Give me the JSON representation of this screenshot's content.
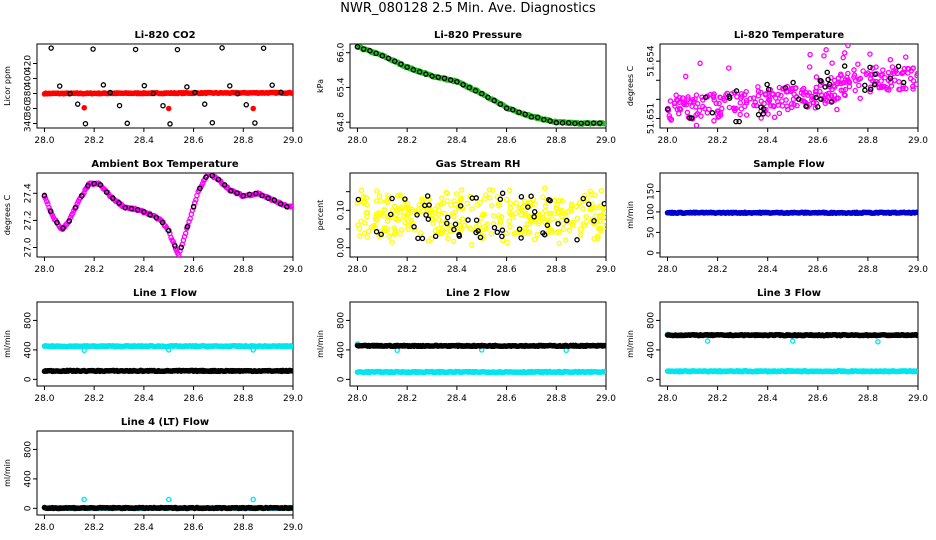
{
  "page_title": "NWR_080128  2.5 Min. Ave. Diagnostics",
  "colors": {
    "co2": "#ff0000",
    "pressure": "#22bb22",
    "temperature": "#ff00ff",
    "ambient": "#ff00ff",
    "rh": "#ffff00",
    "sample_flow": "#0000cc",
    "line_flow": "#00e5ee",
    "reference": "#000000"
  },
  "chart_data": [
    {
      "id": "co2",
      "type": "scatter",
      "title": "Li-820 CO2",
      "ylabel": "Licor ppm",
      "x_ticks": [
        "28.0",
        "28.2",
        "28.4",
        "28.6",
        "28.8",
        "29.0"
      ],
      "xlim": [
        27.97,
        29.0
      ],
      "y_ticks": [
        "340",
        "360",
        "380",
        "400",
        "420"
      ],
      "ylim": [
        334,
        446
      ],
      "series": [
        {
          "name": "averages",
          "color": "#ff0000",
          "filled": true,
          "start": 380.0,
          "end": 381.0
        },
        {
          "name": "reference",
          "color": "#000000",
          "levels": [
            440,
            390,
            380,
            365,
            340
          ]
        },
        {
          "name": "outliers",
          "color": "#ff0000",
          "points": [
            [
              28.16,
              361
            ],
            [
              28.5,
              360
            ],
            [
              28.84,
              360
            ]
          ]
        }
      ]
    },
    {
      "id": "pressure",
      "type": "scatter",
      "title": "Li-820 Pressure",
      "ylabel": "kPa",
      "x_ticks": [
        "28.0",
        "28.2",
        "28.4",
        "28.6",
        "28.8",
        "29.0"
      ],
      "xlim": [
        27.97,
        29.0
      ],
      "y_ticks": [
        "64.8",
        "65.4",
        "66.0"
      ],
      "y_tick_values": [
        64.8,
        65.4,
        66.0
      ],
      "ylim": [
        64.7,
        66.15
      ],
      "series": [
        {
          "name": "averages",
          "color": "#22bb22",
          "curve": [
            [
              28.0,
              66.1
            ],
            [
              28.1,
              65.95
            ],
            [
              28.2,
              65.75
            ],
            [
              28.3,
              65.6
            ],
            [
              28.4,
              65.5
            ],
            [
              28.5,
              65.3
            ],
            [
              28.6,
              65.05
            ],
            [
              28.7,
              64.9
            ],
            [
              28.8,
              64.8
            ],
            [
              28.9,
              64.78
            ],
            [
              29.0,
              64.78
            ]
          ]
        }
      ]
    },
    {
      "id": "temperature",
      "type": "scatter",
      "title": "Li-820 Temperature",
      "ylabel": "degrees C",
      "x_ticks": [
        "28.0",
        "28.2",
        "28.4",
        "28.6",
        "28.8",
        "29.0"
      ],
      "xlim": [
        27.97,
        29.0
      ],
      "y_ticks": [
        "51.651",
        "51.652",
        "51.653",
        "51.654"
      ],
      "y_tick_labels": [
        "51.651",
        "",
        "",
        "51.654"
      ],
      "y_tick_values": [
        51.651,
        51.652,
        51.653,
        51.654
      ],
      "ylim": [
        51.6505,
        51.6549
      ],
      "series": [
        {
          "name": "averages",
          "color": "#ff00ff",
          "band": [
            [
              28.0,
              51.6515
            ],
            [
              28.55,
              51.652
            ],
            [
              28.65,
              51.6525
            ],
            [
              28.75,
              51.653
            ],
            [
              29.0,
              51.6532
            ]
          ]
        }
      ]
    },
    {
      "id": "ambient",
      "type": "scatter",
      "title": "Ambient Box Temperature",
      "ylabel": "degrees C",
      "x_ticks": [
        "28.0",
        "28.2",
        "28.4",
        "28.6",
        "28.8",
        "29.0"
      ],
      "xlim": [
        27.97,
        29.0
      ],
      "y_ticks": [
        "27.0",
        "27.2",
        "27.4"
      ],
      "y_tick_values": [
        27.0,
        27.2,
        27.4
      ],
      "ylim": [
        26.93,
        27.55
      ],
      "series": [
        {
          "name": "averages",
          "color": "#ff00ff",
          "curve": [
            [
              28.0,
              27.38
            ],
            [
              28.03,
              27.24
            ],
            [
              28.07,
              27.13
            ],
            [
              28.1,
              27.2
            ],
            [
              28.14,
              27.35
            ],
            [
              28.18,
              27.47
            ],
            [
              28.22,
              27.47
            ],
            [
              28.27,
              27.37
            ],
            [
              28.32,
              27.3
            ],
            [
              28.37,
              27.28
            ],
            [
              28.42,
              27.25
            ],
            [
              28.47,
              27.2
            ],
            [
              28.5,
              27.12
            ],
            [
              28.54,
              26.94
            ],
            [
              28.58,
              27.18
            ],
            [
              28.62,
              27.42
            ],
            [
              28.66,
              27.55
            ],
            [
              28.7,
              27.5
            ],
            [
              28.75,
              27.42
            ],
            [
              28.8,
              27.38
            ],
            [
              28.86,
              27.4
            ],
            [
              28.92,
              27.35
            ],
            [
              28.98,
              27.3
            ]
          ]
        }
      ]
    },
    {
      "id": "rh",
      "type": "scatter",
      "title": "Gas Stream RH",
      "ylabel": "percent",
      "x_ticks": [
        "28.0",
        "28.2",
        "28.4",
        "28.6",
        "28.8",
        "29.0"
      ],
      "xlim": [
        27.97,
        29.0
      ],
      "y_ticks": [
        "0.00",
        "0.05",
        "0.10",
        "0.15"
      ],
      "y_tick_labels": [
        "0.00",
        "",
        "0.10",
        ""
      ],
      "y_tick_values": [
        0.0,
        0.05,
        0.1,
        0.15
      ],
      "ylim": [
        -0.025,
        0.2
      ],
      "series": [
        {
          "name": "averages",
          "color": "#ffff00",
          "band_center": 0.085,
          "band_spread": 0.08
        }
      ]
    },
    {
      "id": "sample_flow",
      "type": "scatter",
      "title": "Sample Flow",
      "ylabel": "ml/min",
      "x_ticks": [
        "28.0",
        "28.2",
        "28.4",
        "28.6",
        "28.8",
        "29.0"
      ],
      "xlim": [
        27.97,
        29.0
      ],
      "y_ticks": [
        "0",
        "50",
        "100",
        "150"
      ],
      "y_tick_values": [
        0,
        50,
        100,
        150
      ],
      "ylim": [
        -10,
        195
      ],
      "series": [
        {
          "name": "averages",
          "color": "#0000cc",
          "level": 98
        }
      ]
    },
    {
      "id": "line1",
      "type": "scatter",
      "title": "Line 1 Flow",
      "ylabel": "ml/min",
      "x_ticks": [
        "28.0",
        "28.2",
        "28.4",
        "28.6",
        "28.8",
        "29.0"
      ],
      "xlim": [
        27.97,
        29.0
      ],
      "y_ticks": [
        "0",
        "400",
        "800"
      ],
      "y_tick_values": [
        0,
        400,
        800
      ],
      "ylim": [
        -90,
        1050
      ],
      "series": [
        {
          "name": "line_flow",
          "color": "#00e5ee",
          "level": 450,
          "dips": [
            [
              28.16,
              395
            ],
            [
              28.5,
              400
            ],
            [
              28.84,
              400
            ]
          ]
        },
        {
          "name": "reference",
          "color": "#000000",
          "level": 115
        }
      ]
    },
    {
      "id": "line2",
      "type": "scatter",
      "title": "Line 2 Flow",
      "ylabel": "ml/min",
      "x_ticks": [
        "28.0",
        "28.2",
        "28.4",
        "28.6",
        "28.8",
        "29.0"
      ],
      "xlim": [
        27.97,
        29.0
      ],
      "y_ticks": [
        "0",
        "400",
        "800"
      ],
      "y_tick_values": [
        0,
        400,
        800
      ],
      "ylim": [
        -90,
        1050
      ],
      "series": [
        {
          "name": "line_flow",
          "color": "#00e5ee",
          "level": 100,
          "extra": [
            [
              28.0,
              480
            ],
            [
              28.16,
              395
            ],
            [
              28.5,
              400
            ],
            [
              28.84,
              395
            ]
          ]
        },
        {
          "name": "reference",
          "color": "#000000",
          "level": 455
        }
      ]
    },
    {
      "id": "line3",
      "type": "scatter",
      "title": "Line 3 Flow",
      "ylabel": "ml/min",
      "x_ticks": [
        "28.0",
        "28.2",
        "28.4",
        "28.6",
        "28.8",
        "29.0"
      ],
      "xlim": [
        27.97,
        29.0
      ],
      "y_ticks": [
        "0",
        "400",
        "800"
      ],
      "y_tick_values": [
        0,
        400,
        800
      ],
      "ylim": [
        -90,
        1050
      ],
      "series": [
        {
          "name": "line_flow",
          "color": "#00e5ee",
          "level": 110,
          "extra": [
            [
              28.0,
              610
            ],
            [
              28.16,
              520
            ],
            [
              28.5,
              520
            ],
            [
              28.84,
              510
            ]
          ]
        },
        {
          "name": "reference",
          "color": "#000000",
          "level": 600
        }
      ]
    },
    {
      "id": "line4",
      "type": "scatter",
      "title": "Line 4 (LT) Flow",
      "ylabel": "ml/min",
      "x_ticks": [
        "28.0",
        "28.2",
        "28.4",
        "28.6",
        "28.8",
        "29.0"
      ],
      "xlim": [
        27.97,
        29.0
      ],
      "y_ticks": [
        "0",
        "400",
        "800"
      ],
      "y_tick_values": [
        0,
        400,
        800
      ],
      "ylim": [
        -90,
        1050
      ],
      "series": [
        {
          "name": "line_flow",
          "color": "#00e5ee",
          "level": 5,
          "extra": [
            [
              28.16,
              120
            ],
            [
              28.5,
              120
            ],
            [
              28.84,
              120
            ]
          ]
        },
        {
          "name": "reference",
          "color": "#000000",
          "level": 5
        }
      ]
    }
  ]
}
